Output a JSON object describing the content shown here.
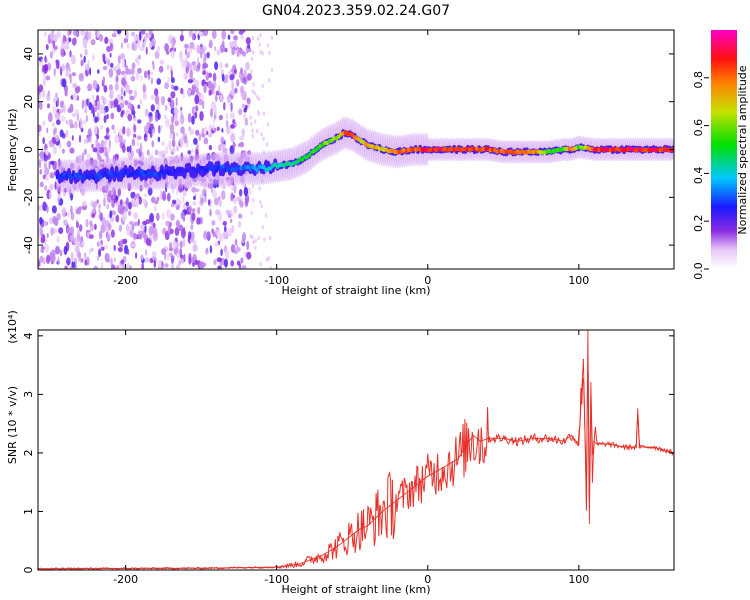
{
  "title": "GN04.2023.359.02.24.G07",
  "chart_data": [
    {
      "type": "heatmap",
      "xlabel": "Height of straight line (km)",
      "ylabel": "Frequency (Hz)",
      "xlim": [
        -258,
        163
      ],
      "ylim": [
        -50,
        50
      ],
      "xticks": [
        -200,
        -100,
        0,
        100
      ],
      "yticks": [
        -40,
        -20,
        0,
        20,
        40
      ],
      "colorbar": {
        "label": "Normalized spectral amplitude",
        "range": [
          0,
          1
        ],
        "ticks": [
          "0.0",
          "0.2",
          "0.4",
          "0.6",
          "0.8"
        ],
        "colormap": "rainbow (white → violet → blue → cyan → green → yellow → red → magenta)"
      },
      "ridge": {
        "name": "",
        "x": [
          -240,
          -220,
          -200,
          -180,
          -160,
          -140,
          -120,
          -110,
          -100,
          -90,
          -80,
          -70,
          -60,
          -55,
          -50,
          -45,
          -40,
          -30,
          -20,
          -10,
          0,
          10,
          20,
          30,
          40,
          50,
          60,
          70,
          80,
          90,
          95,
          100,
          110,
          120,
          130,
          140,
          150,
          160
        ],
        "frequency": [
          -11,
          -11,
          -10,
          -10,
          -9,
          -8,
          -8,
          -8,
          -7,
          -6,
          -3,
          2,
          5,
          7,
          6,
          4,
          2,
          0,
          -1,
          0,
          0,
          0,
          0,
          0,
          0,
          -1,
          -1,
          -1,
          -1,
          0,
          0,
          1,
          0,
          0,
          0,
          0,
          0,
          0
        ],
        "amplitude": [
          0.3,
          0.3,
          0.3,
          0.3,
          0.25,
          0.3,
          0.35,
          0.4,
          0.45,
          0.5,
          0.55,
          0.6,
          0.7,
          0.9,
          0.85,
          0.7,
          0.8,
          0.75,
          0.85,
          0.9,
          0.95,
          0.95,
          0.95,
          0.9,
          0.9,
          0.85,
          0.85,
          0.85,
          0.6,
          0.6,
          0.9,
          0.6,
          0.95,
          0.95,
          0.95,
          0.95,
          0.95,
          0.95
        ]
      },
      "noise_region_x": [
        -258,
        -118
      ]
    },
    {
      "type": "line",
      "xlabel": "Height of straight line (km)",
      "ylabel": "SNR (10 * v/v)",
      "y_multiplier_label": "(x10⁴)",
      "xlim": [
        -258,
        163
      ],
      "ylim": [
        0,
        4.1
      ],
      "xticks": [
        -200,
        -100,
        0,
        100
      ],
      "yticks": [
        0,
        1,
        2,
        3,
        4
      ],
      "series": [
        {
          "name": "",
          "color": "#e8302a",
          "x": [
            -258,
            -150,
            -100,
            -85,
            -70,
            -60,
            -50,
            -45,
            -40,
            -30,
            -25,
            -20,
            -10,
            0,
            10,
            20,
            25,
            30,
            35,
            40,
            50,
            60,
            70,
            80,
            90,
            95,
            100,
            103,
            105,
            106,
            107,
            108,
            109,
            110,
            112,
            120,
            130,
            138,
            139,
            140,
            145,
            150,
            163
          ],
          "y": [
            0.02,
            0.03,
            0.05,
            0.1,
            0.25,
            0.4,
            0.6,
            0.7,
            0.75,
            1.0,
            1.1,
            1.2,
            1.4,
            1.6,
            1.75,
            1.9,
            2.1,
            2.3,
            2.2,
            2.25,
            2.25,
            2.2,
            2.25,
            2.25,
            2.2,
            2.3,
            2.15,
            3.6,
            1.2,
            4.1,
            0.8,
            3.2,
            1.5,
            2.2,
            2.15,
            2.15,
            2.1,
            2.1,
            2.75,
            2.1,
            2.1,
            2.1,
            2.0
          ]
        }
      ]
    }
  ]
}
